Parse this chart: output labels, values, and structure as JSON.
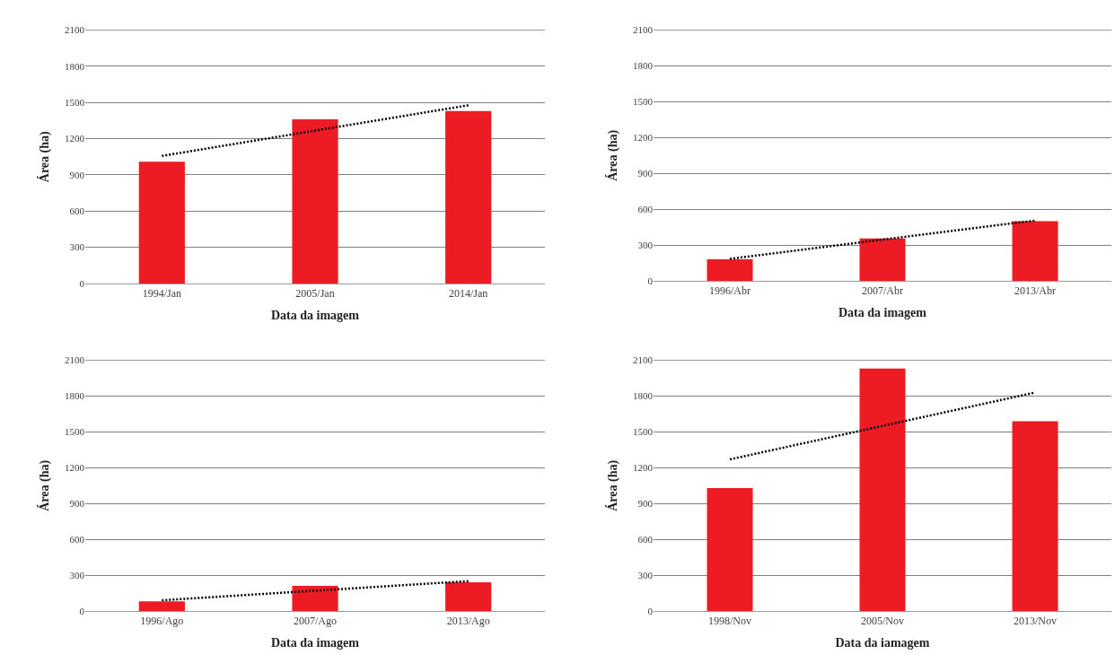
{
  "chart_data": [
    {
      "type": "bar",
      "xlabel": "Data da imagem",
      "ylabel": "Área (ha)",
      "categories": [
        "1994/Jan",
        "2005/Jan",
        "2014/Jan"
      ],
      "ylim": [
        0,
        2100
      ],
      "yticks": [
        0,
        300,
        600,
        900,
        1200,
        1500,
        1800,
        2100
      ],
      "grid": "y",
      "series": [
        {
          "color": "#ed1c24",
          "values": [
            1010,
            1360,
            1430
          ]
        },
        {
          "type": "line",
          "color": "#000000",
          "line_style": "dotted",
          "marker": "none",
          "values": [
            1057,
            1267,
            1477
          ]
        }
      ]
    },
    {
      "type": "bar",
      "xlabel": "Data da imagem",
      "ylabel": "Área (ha)",
      "categories": [
        "1996/Abr",
        "2007/Abr",
        "2013/Abr"
      ],
      "ylim": [
        0,
        2100
      ],
      "yticks": [
        0,
        300,
        600,
        900,
        1200,
        1500,
        1800,
        2100
      ],
      "grid": "y",
      "series": [
        {
          "color": "#ed1c24",
          "values": [
            180,
            355,
            500
          ]
        },
        {
          "type": "line",
          "color": "#000000",
          "line_style": "dotted",
          "marker": "none",
          "values": [
            185,
            345,
            505
          ]
        }
      ]
    },
    {
      "type": "bar",
      "xlabel": "Data da imagem",
      "ylabel": "Área (ha)",
      "categories": [
        "1996/Ago",
        "2007/Ago",
        "2013/Ago"
      ],
      "ylim": [
        0,
        2100
      ],
      "yticks": [
        0,
        300,
        600,
        900,
        1200,
        1500,
        1800,
        2100
      ],
      "grid": "y",
      "series": [
        {
          "color": "#ed1c24",
          "values": [
            80,
            210,
            240
          ]
        },
        {
          "type": "line",
          "color": "#000000",
          "line_style": "dotted",
          "marker": "none",
          "values": [
            90,
            170,
            250
          ]
        }
      ]
    },
    {
      "type": "bar",
      "xlabel": "Data da iamagem",
      "ylabel": "Área (ha)",
      "categories": [
        "1998/Nov",
        "2005/Nov",
        "2013/Nov"
      ],
      "ylim": [
        0,
        2100
      ],
      "yticks": [
        0,
        300,
        600,
        900,
        1200,
        1500,
        1800,
        2100
      ],
      "grid": "y",
      "series": [
        {
          "color": "#ed1c24",
          "values": [
            1030,
            2030,
            1590
          ]
        },
        {
          "type": "line",
          "color": "#000000",
          "line_style": "dotted",
          "marker": "none",
          "values": [
            1270,
            1550,
            1830
          ]
        }
      ]
    }
  ]
}
